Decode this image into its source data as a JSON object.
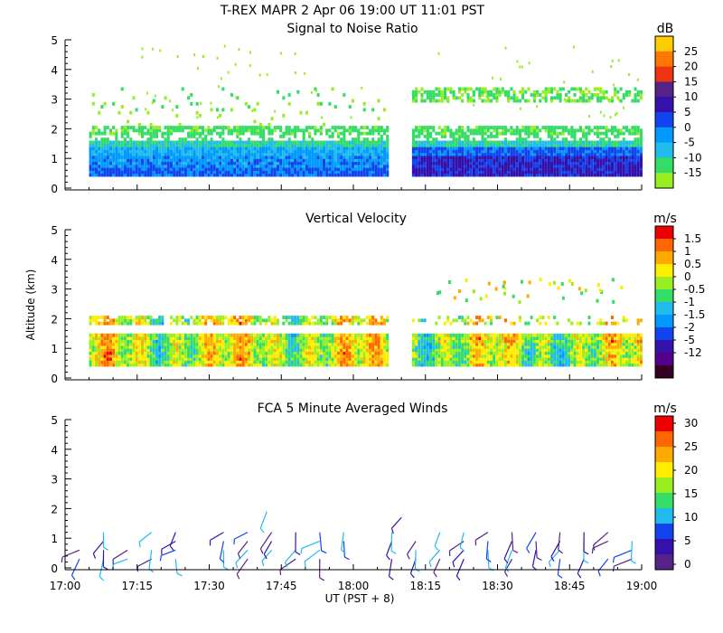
{
  "figure": {
    "title": "T-REX  MAPR  2 Apr 06  19:00 UT  11:01  PST",
    "xlabel": "UT  (PST + 8)",
    "ylabel": "Altitude (km)"
  },
  "chart_data": [
    {
      "type": "heatmap",
      "title": "Signal to Noise Ratio",
      "xlabel": "UT  (PST + 8)",
      "ylabel": "Altitude (km)",
      "x_ticks": [
        "17:00",
        "17:15",
        "17:30",
        "17:45",
        "18:00",
        "18:15",
        "18:30",
        "18:45",
        "19:00"
      ],
      "xlim_minutes": [
        0,
        120
      ],
      "ylim": [
        0,
        5
      ],
      "y_ticks": [
        0,
        1,
        2,
        3,
        4,
        5
      ],
      "data_gap_minutes": [
        67,
        72
      ],
      "colorbar": {
        "unit": "dB",
        "levels": [
          -15,
          -10,
          -5,
          0,
          5,
          10,
          15,
          20,
          25
        ],
        "colors": [
          "#99ee22",
          "#33dd66",
          "#22bbee",
          "#0099ff",
          "#1144ee",
          "#3311aa",
          "#552288",
          "#ee3311",
          "#ff7700",
          "#ffcc00"
        ]
      },
      "layers": [
        {
          "alt_range_km": [
            0.4,
            0.7
          ],
          "min_range": [
            -5,
            5
          ]
        },
        {
          "alt_range_km": [
            0.7,
            1.4
          ],
          "min_range": [
            -10,
            10
          ]
        },
        {
          "alt_range_km": [
            1.4,
            2.1
          ],
          "min_range": [
            -15,
            -5
          ]
        },
        {
          "alt_range_km": [
            2.6,
            3.4
          ],
          "min_range": [
            -15,
            -10
          ]
        }
      ]
    },
    {
      "type": "heatmap",
      "title": "Vertical Velocity",
      "xlabel": "UT  (PST + 8)",
      "ylabel": "Altitude (km)",
      "x_ticks": [
        "17:00",
        "17:15",
        "17:30",
        "17:45",
        "18:00",
        "18:15",
        "18:30",
        "18:45",
        "19:00"
      ],
      "xlim_minutes": [
        0,
        120
      ],
      "ylim": [
        0,
        5
      ],
      "y_ticks": [
        0,
        1,
        2,
        3,
        4,
        5
      ],
      "data_gap_minutes": [
        67,
        72
      ],
      "colorbar": {
        "unit": "m/s",
        "levels": [
          -12,
          -5,
          -2,
          -1.5,
          -1,
          -0.5,
          0,
          0.5,
          1,
          1.5
        ],
        "colors": [
          "#330022",
          "#550088",
          "#3311aa",
          "#1144ee",
          "#0099ff",
          "#22bbee",
          "#33dd66",
          "#99ee22",
          "#ffee00",
          "#ffaa00",
          "#ff6600",
          "#ee0000"
        ],
        "tick_labels": [
          "1.5",
          "1",
          "0.5",
          "0",
          "-0.5",
          "-1",
          "-1.5",
          "-2",
          "-5",
          "-12"
        ]
      },
      "values_range_m_s": [
        -2,
        1.5
      ]
    },
    {
      "type": "barbs",
      "title": "FCA 5 Minute Averaged Winds",
      "xlabel": "UT  (PST + 8)",
      "ylabel": "Altitude (km)",
      "x_ticks": [
        "17:00",
        "17:15",
        "17:30",
        "17:45",
        "18:00",
        "18:15",
        "18:30",
        "18:45",
        "19:00"
      ],
      "xlim_minutes": [
        0,
        120
      ],
      "ylim": [
        0,
        5
      ],
      "y_ticks": [
        0,
        1,
        2,
        3,
        4,
        5
      ],
      "colorbar": {
        "unit": "m/s",
        "levels": [
          0,
          5,
          10,
          15,
          20,
          25,
          30
        ],
        "colors": [
          "#552288",
          "#3311aa",
          "#1144ee",
          "#22bbee",
          "#33dd66",
          "#99ee22",
          "#ffee00",
          "#ffaa00",
          "#ff6600",
          "#ee0000"
        ],
        "tick_labels": [
          "30",
          "25",
          "20",
          "15",
          "10",
          "5",
          "0"
        ]
      },
      "barb_times_minutes": [
        5,
        10,
        15,
        20,
        25,
        35,
        40,
        45,
        50,
        55,
        60,
        70,
        75,
        80,
        85,
        90,
        95,
        100,
        105,
        110,
        115,
        120
      ],
      "barb_altitudes_km": [
        0.3,
        0.6,
        0.9,
        1.2
      ],
      "extra_barbs": [
        {
          "time_minutes": 42,
          "alt_km": 1.9
        },
        {
          "time_minutes": 70,
          "alt_km": 1.7
        }
      ],
      "speed_range_m_s": [
        0,
        10
      ]
    }
  ]
}
